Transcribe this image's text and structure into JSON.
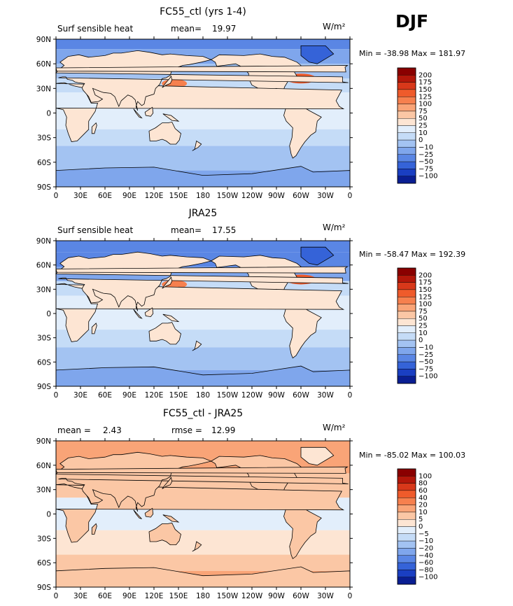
{
  "season": "DJF",
  "panels": [
    {
      "title": "FC55_ctl (yrs 1-4)",
      "left_label": "Surf sensible heat",
      "stat1_label": "mean=",
      "stat1_value": "19.97",
      "stat2_label": "",
      "stat2_value": "",
      "units": "W/m²",
      "min_max": "Min = -38.98  Max = 181.97",
      "colorbar_levels": [
        "200",
        "175",
        "150",
        "125",
        "100",
        "75",
        "50",
        "25",
        "10",
        "0",
        "−10",
        "−25",
        "−50",
        "−75",
        "−100"
      ]
    },
    {
      "title": "JRA25",
      "left_label": "Surf sensible heat",
      "stat1_label": "mean=",
      "stat1_value": "17.55",
      "stat2_label": "",
      "stat2_value": "",
      "units": "W/m²",
      "min_max": "Min = -58.47  Max = 192.39",
      "colorbar_levels": [
        "200",
        "175",
        "150",
        "125",
        "100",
        "75",
        "50",
        "25",
        "10",
        "0",
        "−10",
        "−25",
        "−50",
        "−75",
        "−100"
      ]
    },
    {
      "title": "FC55_ctl - JRA25",
      "left_label": "mean =",
      "stat1_label": "",
      "stat1_value": "2.43",
      "stat2_label": "rmse =",
      "stat2_value": "12.99",
      "units": "W/m²",
      "min_max": "Min = -85.02  Max = 100.03",
      "colorbar_levels": [
        "100",
        "80",
        "60",
        "40",
        "20",
        "10",
        "5",
        "0",
        "−5",
        "−10",
        "−20",
        "−40",
        "−60",
        "−80",
        "−100"
      ]
    }
  ],
  "axes": {
    "lat_labels": [
      "90N",
      "60N",
      "30N",
      "0",
      "30S",
      "60S",
      "90S"
    ],
    "lon_labels": [
      "0",
      "30E",
      "60E",
      "90E",
      "120E",
      "150E",
      "180",
      "150W",
      "120W",
      "90W",
      "60W",
      "30W",
      "0"
    ]
  },
  "colors": {
    "abs_scale": [
      "#8a0000",
      "#b3170a",
      "#d8381a",
      "#ef5b2b",
      "#f6804e",
      "#f9a477",
      "#fbc7a5",
      "#fde5d3",
      "#e2eefb",
      "#c5dcf7",
      "#a3c3f2",
      "#7fa6ec",
      "#5a86e4",
      "#3563d8",
      "#1a3fc2",
      "#0a1e92"
    ],
    "diff_scale": [
      "#8a0000",
      "#b3170a",
      "#d8381a",
      "#ef5b2b",
      "#f6804e",
      "#f9a477",
      "#fbc7a5",
      "#fde5d3",
      "#e2eefb",
      "#c5dcf7",
      "#a3c3f2",
      "#7fa6ec",
      "#5a86e4",
      "#3563d8",
      "#1a3fc2",
      "#0a1e92"
    ]
  }
}
